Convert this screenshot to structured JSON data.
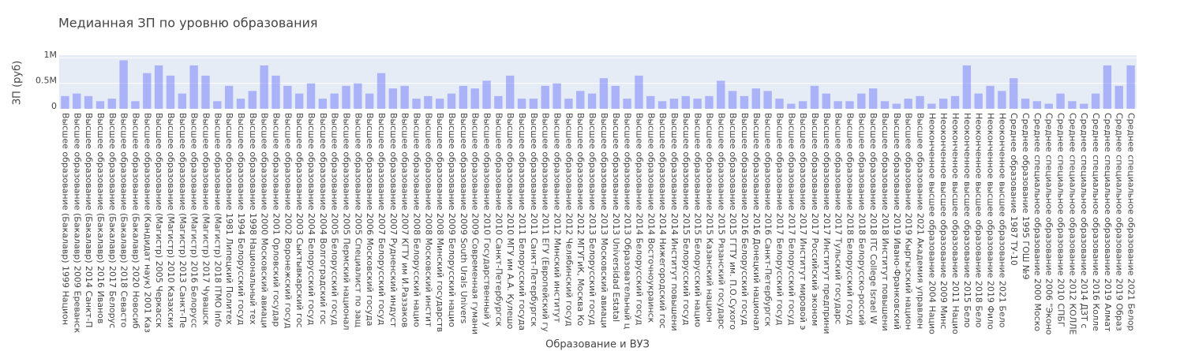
{
  "chart_data": {
    "type": "bar",
    "title": "Медианная ЗП по уровню образования",
    "x_label": "Образование и ВУЗ",
    "y_label": "ЗП (руб)",
    "color": "#636efa",
    "categories": [
      "Высшее образование (Бакалавр) 1999 Национ",
      "Высшее образование (Бакалавр) 2009 Ереванск",
      "Высшее образование (Бакалавр) 2014 Санкт-П",
      "Высшее образование (Бакалавр) 2016 Иванов",
      "Высшее образование (Бакалавр) 2017 Белорус",
      "Высшее образование (Бакалавр) 2018 Севасто",
      "Высшее образование (Бакалавр) 2020 Новосиб",
      "Высшее образование (Кандидат наук) 2001 Каз",
      "Высшее образование (Магистр) 2005 Черкасск",
      "Высшее образование (Магистр) 2010 Казахски",
      "Высшее образование (Магистр) 2013 Санкт-Пе",
      "Высшее образование (Магистр) 2016 Белорусс",
      "Высшее образование (Магистр) 2017 Чувашск",
      "Высшее образование (Магистр) 2018 ITMO Info",
      "Высшее образование 1981 Липецкий Политех",
      "Высшее образование 1994 Белорусский госуд",
      "Высшее образование 1998 Национальный тех",
      "Высшее образование 2000 Московский авиаци",
      "Высшее образование 2001 Орловский государ",
      "Высшее образование 2002 Воронежский госуд",
      "Высшее образование 2003 Сыктывкарский гос",
      "Высшее образование 2004 Белорусский госуд",
      "Высшее образование 2004 Волгоградский гос",
      "Высшее образование 2005 Белорусский госуд",
      "Высшее образование 2005 Пермский национал",
      "Высшее образование 2005 Специалист по защ",
      "Высшее образование 2006 Московский госуда",
      "Высшее образование 2007 Белорусский госуд",
      "Высшее образование 2007 Рудненский индуст",
      "Высшее образование 2007 КГТУ им И.Раззаков",
      "Высшее образование 2008 Белорусский нацио",
      "Высшее образование 2008 Московский инстит",
      "Высшее образование 2008 Минский государств",
      "Высшее образование 2009 Белорусский нацио",
      "Высшее образование 2009 South Urals Univers",
      "Высшее образование 2009 Современная гумани",
      "Высшее образование 2010 Государственный у",
      "Высшее образование 2010 Санкт-Петербургск",
      "Высшее образование 2010 МГУ им А.А. Кулешо",
      "Высшее образование 2011 Белорусский госуда",
      "Высшее образование 2011 Санкт-Петербургск",
      "Высшее образование 2011 ЕГУ (Европейский гу",
      "Высшее образование 2012 Минский институт",
      "Высшее образование 2012 Челябинский госуд",
      "Высшее образование 2012 МГУГиК, Москва Ко",
      "Высшее образование 2013 Белорусский госуд",
      "Высшее образование 2013 Московский авиаци",
      "Высшее образование 2013 Universidad Estatal",
      "Высшее образование 2013 Образовательный ц",
      "Высшее образование 2014 Белорусский госуд",
      "Высшее образование 2014 Восточноукраинск",
      "Высшее образование 2014 Нижегородский гос",
      "Высшее образование 2014 Институт повышени",
      "Высшее образование 2015 Белорусский госуд",
      "Высшее образование 2015 Белорусский нацио",
      "Высшее образование 2015 Казанский национ",
      "Высшее образование 2015 Рязанский государс",
      "Высшее образование 2015 ГГТУ им. П.О.Сухого",
      "Высшее образование 2016 Белорусский госуд",
      "Высшее образование 2016 Донецкий национал",
      "Высшее образование 2016 Санкт-Петербургск",
      "Высшее образование 2017 Белорусский госуд",
      "Высшее образование 2017 Белорусский госуд",
      "Высшее образование 2017 Институт мировой э",
      "Высшее образование 2017 Российский эконом",
      "Высшее образование 2017 Институт предприни",
      "Высшее образование 2017 Тульский государс",
      "Высшее образование 2018 Белорусский госуд",
      "Высшее образование 2018 Белорусско-россий",
      "Высшее образование 2018 ITC College Israel W",
      "Высшее образование 2018 Институт повышени",
      "Высшее образование 2019 Ивано-Франковский",
      "Высшее образование 2019 Кыргызский национ",
      "Высшее образование 2021 Академия управлен",
      "Неоконченное высшее образование 2004 Нацио",
      "Неоконченное высшее образование 2009 Минс",
      "Неоконченное высшее образование 2011 Нацио",
      "Неоконченное высшее образование 2015 Бело",
      "Неоконченное высшее образование 2018 Бело",
      "Неоконченное высшее образование 2019 Фило",
      "Неоконченное высшее образование 2021 Бело",
      "Среднее образование 1987 ТУ-10",
      "Среднее образование 1995 ГОШ №9",
      "Среднее специальное образование 2000 Моско",
      "Среднее специальное образование 2006 \"Эконо",
      "Среднее специальное образование 2010 СПБГ",
      "Среднее специальное образование 2012 КОЛЛЕ",
      "Среднее специальное образование 2014 ДЗТ с",
      "Среднее специальное образование 2016 Колле",
      "Среднее специальное образование 2019 Алмат",
      "Среднее специальное образование 2019 Образ",
      "Среднее специальное образование 2021 Белор"
    ],
    "values": [
      250000,
      300000,
      250000,
      150000,
      200000,
      950000,
      150000,
      700000,
      850000,
      650000,
      300000,
      850000,
      650000,
      150000,
      450000,
      200000,
      350000,
      850000,
      650000,
      450000,
      300000,
      500000,
      200000,
      300000,
      450000,
      500000,
      300000,
      700000,
      400000,
      450000,
      200000,
      250000,
      200000,
      300000,
      450000,
      400000,
      550000,
      250000,
      650000,
      200000,
      200000,
      450000,
      500000,
      200000,
      350000,
      300000,
      600000,
      450000,
      200000,
      650000,
      250000,
      150000,
      200000,
      250000,
      200000,
      250000,
      550000,
      350000,
      250000,
      400000,
      350000,
      200000,
      100000,
      150000,
      450000,
      300000,
      150000,
      150000,
      300000,
      400000,
      150000,
      100000,
      200000,
      250000,
      100000,
      200000,
      250000,
      850000,
      300000,
      450000,
      350000,
      600000,
      200000,
      150000,
      100000,
      300000,
      150000,
      100000,
      300000,
      850000,
      450000,
      850000
    ],
    "ylim": [
      0,
      1050000
    ],
    "yticks": [
      0,
      {
        "value": 500000,
        "label": "0.5M"
      },
      {
        "value": 1000000,
        "label": "1M"
      }
    ],
    "grid": true
  }
}
